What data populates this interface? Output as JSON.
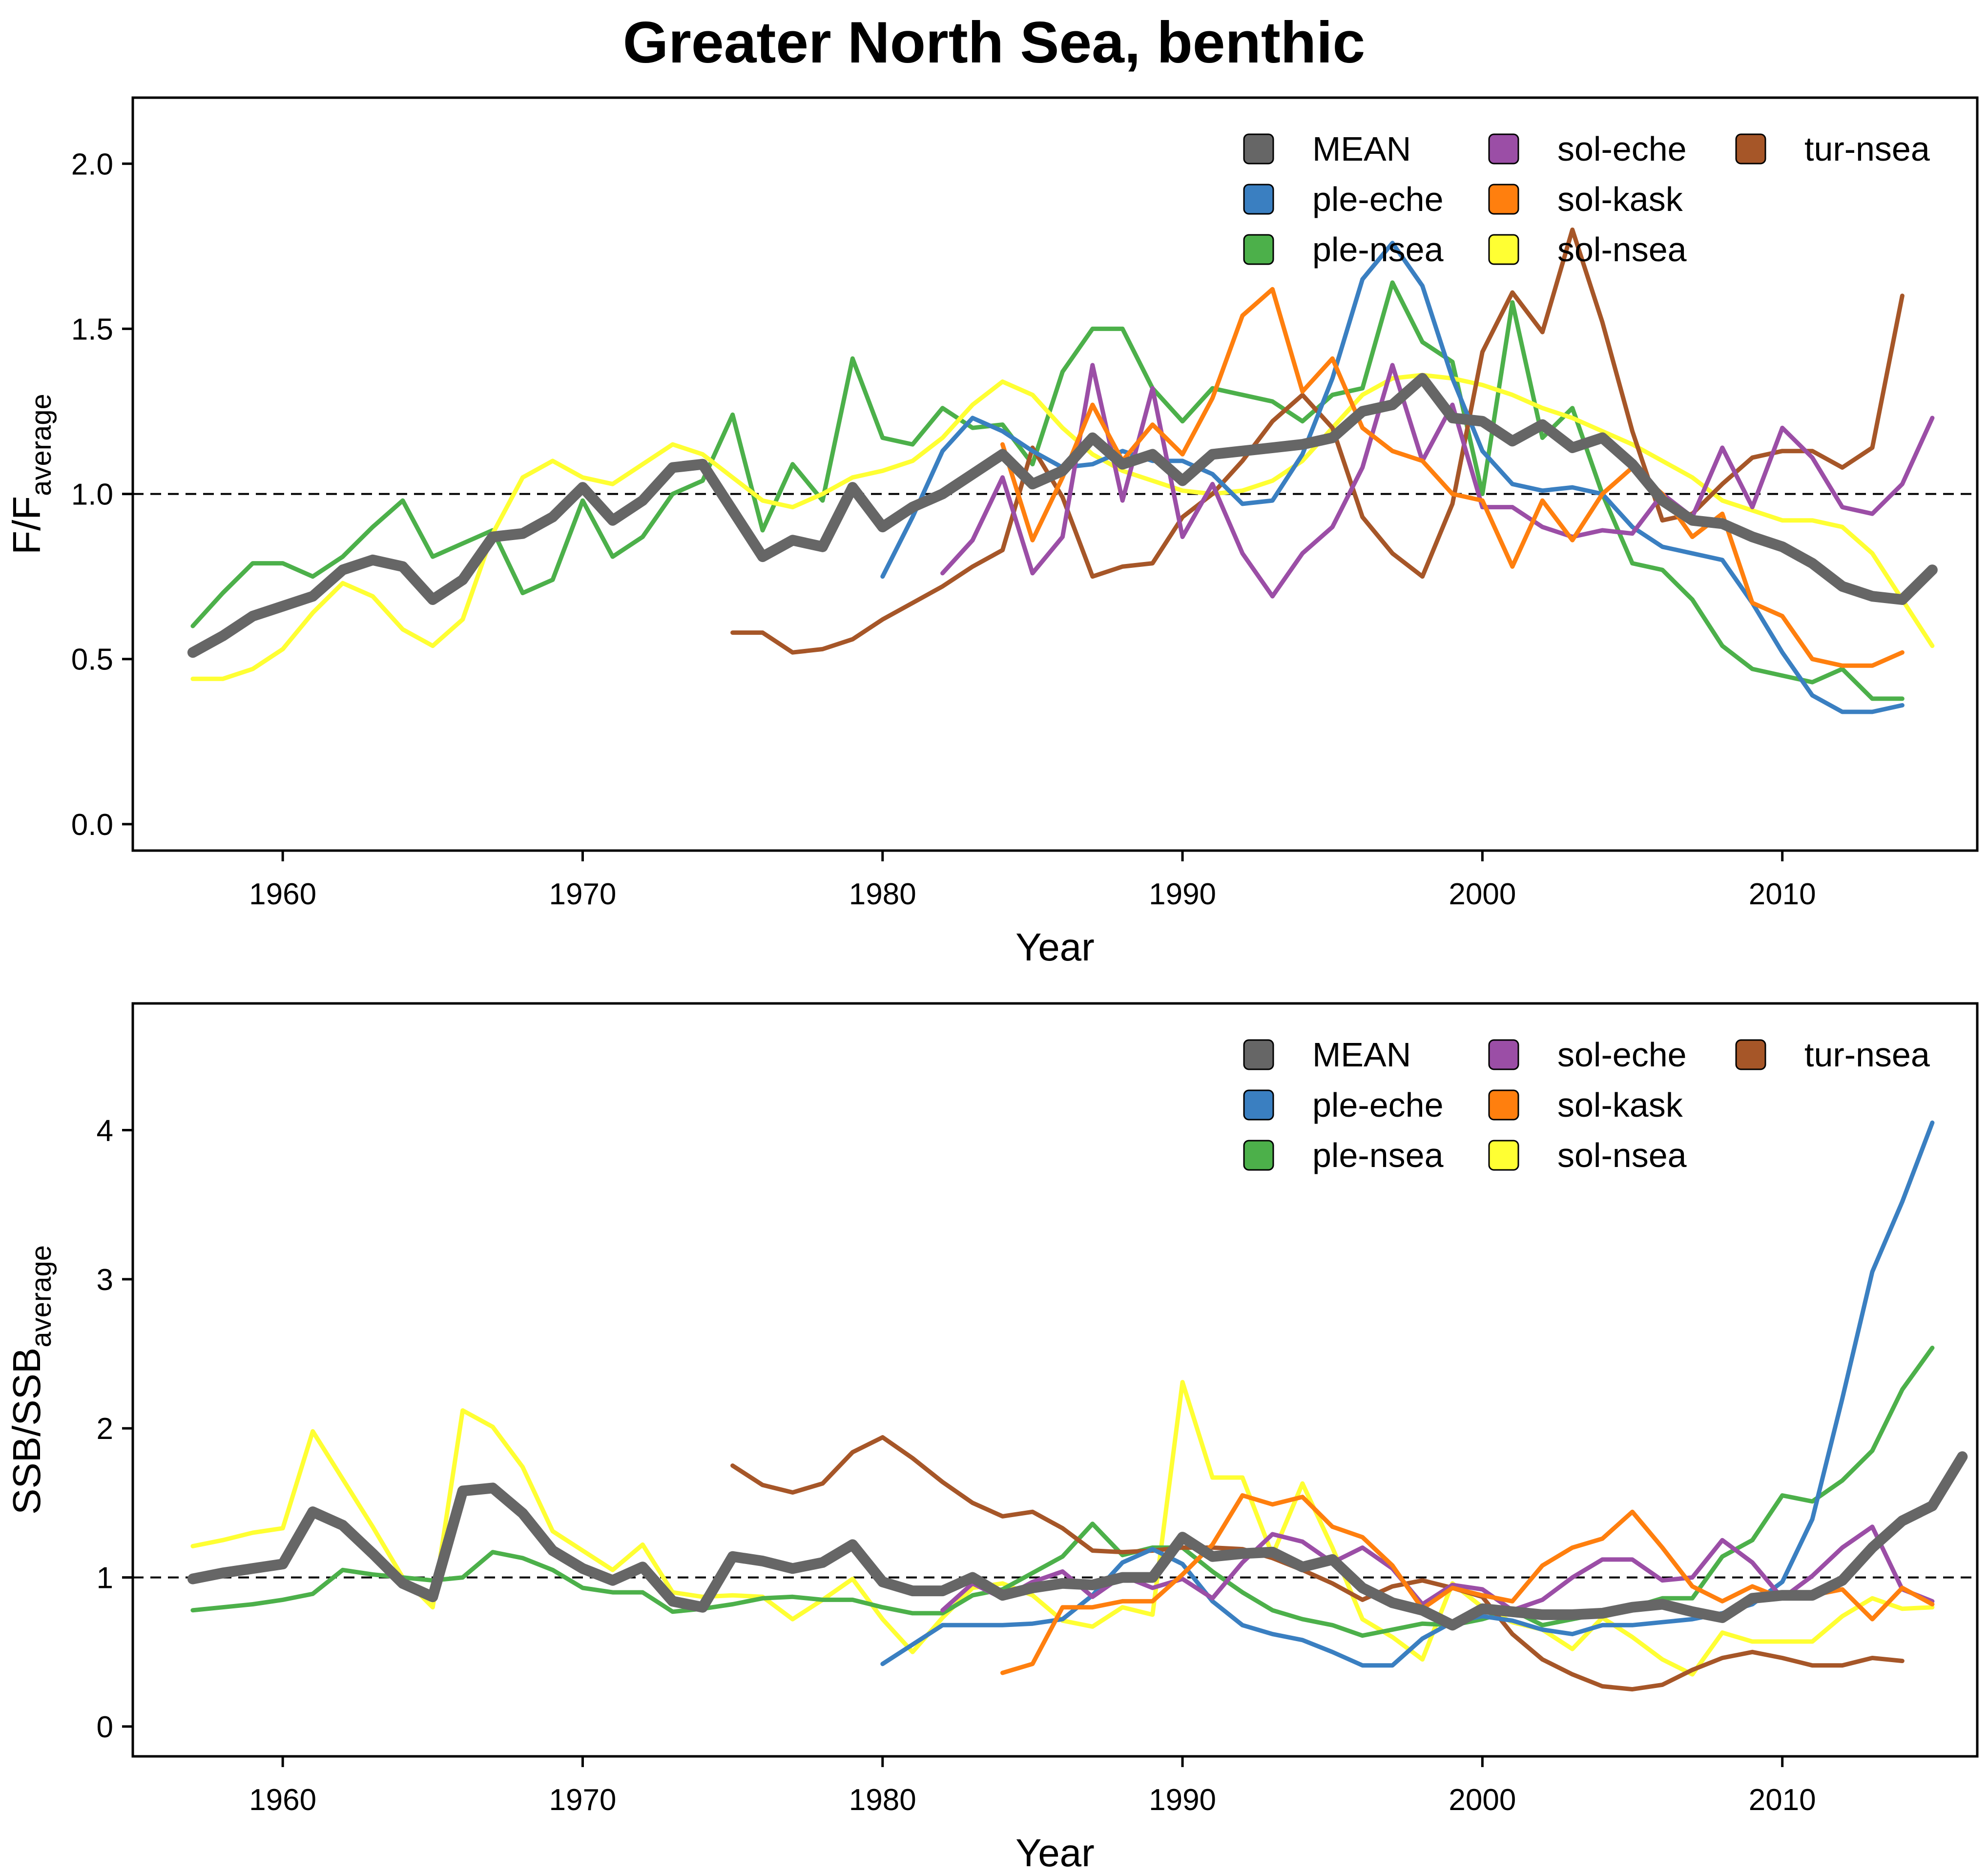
{
  "title": "Greater North Sea, benthic",
  "colors": {
    "MEAN": "#666666",
    "ple-eche": "#3a7fc1",
    "ple-nsea": "#4cb04a",
    "sol-eche": "#9b4ea6",
    "sol-kask": "#ff7f0e",
    "sol-nsea": "#ffff33",
    "tur-nsea": "#a65628"
  },
  "chart_data": [
    {
      "type": "line",
      "xlabel": "Year",
      "ylabel_main": "F/F",
      "ylabel_sub": "average",
      "xlim": [
        1955,
        2016.5
      ],
      "ylim": [
        -0.08,
        2.2
      ],
      "xticks": [
        1960,
        1970,
        1980,
        1990,
        2000,
        2010
      ],
      "yticks": [
        0.0,
        0.5,
        1.0,
        1.5,
        2.0
      ],
      "ytick_labels": [
        "0.0",
        "0.5",
        "1.0",
        "1.5",
        "2.0"
      ],
      "reference_line": 1.0,
      "legend_position": "top-right",
      "legend": [
        "MEAN",
        "ple-eche",
        "ple-nsea",
        "sol-eche",
        "sol-kask",
        "sol-nsea",
        "tur-nsea"
      ],
      "series": [
        {
          "name": "ple-nsea",
          "start": 1957,
          "values": [
            0.6,
            0.7,
            0.79,
            0.79,
            0.75,
            0.81,
            0.9,
            0.98,
            0.81,
            0.85,
            0.89,
            0.7,
            0.74,
            0.98,
            0.81,
            0.87,
            1.0,
            1.04,
            1.24,
            0.89,
            1.09,
            0.98,
            1.41,
            1.17,
            1.15,
            1.26,
            1.2,
            1.21,
            1.09,
            1.37,
            1.5,
            1.5,
            1.32,
            1.22,
            1.32,
            1.3,
            1.28,
            1.22,
            1.3,
            1.32,
            1.64,
            1.46,
            1.4,
            1.0,
            1.58,
            1.17,
            1.26,
            1.0,
            0.79,
            0.77,
            0.68,
            0.54,
            0.47,
            0.45,
            0.43,
            0.47,
            0.38,
            0.38
          ]
        },
        {
          "name": "sol-nsea",
          "start": 1957,
          "values": [
            0.44,
            0.44,
            0.47,
            0.53,
            0.64,
            0.73,
            0.69,
            0.59,
            0.54,
            0.62,
            0.88,
            1.05,
            1.1,
            1.05,
            1.03,
            1.09,
            1.15,
            1.12,
            1.05,
            0.98,
            0.96,
            1.0,
            1.05,
            1.07,
            1.1,
            1.17,
            1.27,
            1.34,
            1.3,
            1.2,
            1.12,
            1.07,
            1.04,
            1.01,
            1.0,
            1.01,
            1.04,
            1.1,
            1.2,
            1.3,
            1.35,
            1.36,
            1.35,
            1.33,
            1.3,
            1.26,
            1.23,
            1.19,
            1.15,
            1.1,
            1.05,
            0.98,
            0.95,
            0.92,
            0.92,
            0.9,
            0.82,
            0.68,
            0.54
          ]
        },
        {
          "name": "tur-nsea",
          "start": 1975,
          "values": [
            0.58,
            0.58,
            0.52,
            0.53,
            0.56,
            0.62,
            0.67,
            0.72,
            0.78,
            0.83,
            1.14,
            0.99,
            0.75,
            0.78,
            0.79,
            0.93,
            1.0,
            1.1,
            1.22,
            1.3,
            1.2,
            0.93,
            0.82,
            0.75,
            0.97,
            1.43,
            1.61,
            1.49,
            1.8,
            1.52,
            1.19,
            0.92,
            0.94,
            1.03,
            1.11,
            1.13,
            1.13,
            1.08,
            1.14,
            1.6
          ]
        },
        {
          "name": "ple-eche",
          "start": 1980,
          "values": [
            0.75,
            0.93,
            1.13,
            1.23,
            1.19,
            1.13,
            1.08,
            1.09,
            1.13,
            1.1,
            1.1,
            1.06,
            0.97,
            0.98,
            1.12,
            1.35,
            1.65,
            1.76,
            1.63,
            1.35,
            1.13,
            1.03,
            1.01,
            1.02,
            1.0,
            0.9,
            0.84,
            0.82,
            0.8,
            0.67,
            0.52,
            0.39,
            0.34,
            0.34,
            0.36
          ]
        },
        {
          "name": "sol-eche",
          "start": 1982,
          "values": [
            0.76,
            0.86,
            1.05,
            0.76,
            0.87,
            1.39,
            0.98,
            1.32,
            0.87,
            1.03,
            0.82,
            0.69,
            0.82,
            0.9,
            1.08,
            1.39,
            1.1,
            1.27,
            0.96,
            0.96,
            0.9,
            0.87,
            0.89,
            0.88,
            1.0,
            0.93,
            1.14,
            0.96,
            1.2,
            1.11,
            0.96,
            0.94,
            1.03,
            1.23
          ]
        },
        {
          "name": "sol-kask",
          "start": 1984,
          "values": [
            1.15,
            0.86,
            1.05,
            1.27,
            1.1,
            1.21,
            1.12,
            1.29,
            1.54,
            1.62,
            1.31,
            1.41,
            1.2,
            1.13,
            1.1,
            1.0,
            0.98,
            0.78,
            0.98,
            0.86,
            1.0,
            1.08,
            1.0,
            0.87,
            0.94,
            0.67,
            0.63,
            0.5,
            0.48,
            0.48,
            0.52
          ]
        },
        {
          "name": "MEAN",
          "start": 1957,
          "values": [
            0.52,
            0.57,
            0.63,
            0.66,
            0.69,
            0.77,
            0.8,
            0.78,
            0.68,
            0.74,
            0.87,
            0.88,
            0.93,
            1.02,
            0.92,
            0.98,
            1.08,
            1.09,
            0.95,
            0.81,
            0.86,
            0.84,
            1.02,
            0.9,
            0.96,
            1.0,
            1.06,
            1.12,
            1.03,
            1.07,
            1.17,
            1.09,
            1.12,
            1.04,
            1.12,
            1.13,
            1.14,
            1.15,
            1.17,
            1.25,
            1.27,
            1.35,
            1.23,
            1.22,
            1.16,
            1.21,
            1.14,
            1.17,
            1.09,
            0.98,
            0.92,
            0.91,
            0.87,
            0.84,
            0.79,
            0.72,
            0.69,
            0.68,
            0.77
          ]
        }
      ]
    },
    {
      "type": "line",
      "xlabel": "Year",
      "ylabel_main": "SSB/SSB",
      "ylabel_sub": "average",
      "xlim": [
        1955,
        2016.5
      ],
      "ylim": [
        -0.2,
        4.85
      ],
      "xticks": [
        1960,
        1970,
        1980,
        1990,
        2000,
        2010
      ],
      "yticks": [
        0,
        1,
        2,
        3,
        4
      ],
      "ytick_labels": [
        "0",
        "1",
        "2",
        "3",
        "4"
      ],
      "reference_line": 1.0,
      "legend_position": "top-right",
      "legend": [
        "MEAN",
        "ple-eche",
        "ple-nsea",
        "sol-eche",
        "sol-kask",
        "sol-nsea",
        "tur-nsea"
      ],
      "series": [
        {
          "name": "sol-nsea",
          "start": 1957,
          "values": [
            1.21,
            1.25,
            1.3,
            1.33,
            1.98,
            1.66,
            1.34,
            1.0,
            0.8,
            2.12,
            2.01,
            1.74,
            1.31,
            1.18,
            1.05,
            1.22,
            0.9,
            0.87,
            0.88,
            0.87,
            0.72,
            0.85,
            0.99,
            0.72,
            0.5,
            0.73,
            0.93,
            0.96,
            0.88,
            0.71,
            0.67,
            0.8,
            0.75,
            2.31,
            1.67,
            1.67,
            1.15,
            1.63,
            1.2,
            0.72,
            0.6,
            0.45,
            0.96,
            0.8,
            0.7,
            0.65,
            0.52,
            0.73,
            0.6,
            0.45,
            0.35,
            0.63,
            0.57,
            0.57,
            0.57,
            0.74,
            0.86,
            0.79,
            0.8
          ]
        },
        {
          "name": "ple-nsea",
          "start": 1957,
          "values": [
            0.78,
            0.8,
            0.82,
            0.85,
            0.89,
            1.05,
            1.02,
            1.0,
            0.98,
            1.0,
            1.17,
            1.13,
            1.05,
            0.93,
            0.9,
            0.9,
            0.77,
            0.79,
            0.82,
            0.86,
            0.87,
            0.85,
            0.85,
            0.8,
            0.76,
            0.76,
            0.88,
            0.92,
            1.03,
            1.14,
            1.36,
            1.15,
            1.2,
            1.2,
            1.04,
            0.9,
            0.78,
            0.72,
            0.68,
            0.61,
            0.65,
            0.69,
            0.68,
            0.72,
            0.78,
            0.68,
            0.72,
            0.76,
            0.8,
            0.86,
            0.86,
            1.14,
            1.25,
            1.55,
            1.51,
            1.65,
            1.85,
            2.26,
            2.54
          ]
        },
        {
          "name": "tur-nsea",
          "start": 1975,
          "values": [
            1.75,
            1.62,
            1.57,
            1.63,
            1.84,
            1.94,
            1.8,
            1.64,
            1.5,
            1.41,
            1.44,
            1.33,
            1.18,
            1.17,
            1.18,
            1.2,
            1.2,
            1.19,
            1.13,
            1.05,
            0.96,
            0.85,
            0.94,
            0.98,
            0.93,
            0.87,
            0.62,
            0.45,
            0.35,
            0.27,
            0.25,
            0.28,
            0.38,
            0.46,
            0.5,
            0.46,
            0.41,
            0.41,
            0.46,
            0.44
          ]
        },
        {
          "name": "ple-eche",
          "start": 1980,
          "values": [
            0.42,
            0.55,
            0.68,
            0.68,
            0.68,
            0.69,
            0.72,
            0.88,
            1.1,
            1.19,
            1.09,
            0.84,
            0.68,
            0.62,
            0.58,
            0.5,
            0.41,
            0.41,
            0.59,
            0.7,
            0.74,
            0.71,
            0.65,
            0.62,
            0.68,
            0.68,
            0.7,
            0.72,
            0.76,
            0.82,
            0.97,
            1.39,
            2.2,
            3.05,
            3.52,
            4.05
          ]
        },
        {
          "name": "sol-eche",
          "start": 1982,
          "values": [
            0.78,
            0.96,
            0.86,
            0.97,
            1.04,
            0.87,
            1.01,
            0.93,
            0.99,
            0.86,
            1.1,
            1.29,
            1.24,
            1.1,
            1.2,
            1.06,
            0.82,
            0.95,
            0.92,
            0.78,
            0.85,
            1.0,
            1.12,
            1.12,
            0.98,
            1.0,
            1.25,
            1.1,
            0.86,
            1.01,
            1.2,
            1.34,
            0.92,
            0.84
          ]
        },
        {
          "name": "sol-kask",
          "start": 1984,
          "values": [
            0.36,
            0.42,
            0.8,
            0.8,
            0.84,
            0.84,
            1.02,
            1.22,
            1.55,
            1.49,
            1.54,
            1.34,
            1.27,
            1.08,
            0.79,
            0.93,
            0.88,
            0.84,
            1.08,
            1.2,
            1.26,
            1.44,
            1.2,
            0.94,
            0.84,
            0.94,
            0.86,
            0.88,
            0.92,
            0.72,
            0.93,
            0.82
          ]
        },
        {
          "name": "MEAN",
          "start": 1957,
          "values": [
            0.99,
            1.03,
            1.06,
            1.09,
            1.44,
            1.35,
            1.16,
            0.96,
            0.87,
            1.58,
            1.6,
            1.43,
            1.18,
            1.06,
            0.98,
            1.07,
            0.84,
            0.8,
            1.14,
            1.11,
            1.06,
            1.1,
            1.22,
            0.97,
            0.91,
            0.91,
            1.0,
            0.88,
            0.93,
            0.96,
            0.95,
            1.0,
            1.0,
            1.27,
            1.14,
            1.16,
            1.17,
            1.07,
            1.12,
            0.93,
            0.83,
            0.78,
            0.68,
            0.79,
            0.77,
            0.75,
            0.75,
            0.76,
            0.8,
            0.82,
            0.77,
            0.73,
            0.86,
            0.88,
            0.88,
            0.98,
            1.2,
            1.38,
            1.48,
            1.81
          ]
        }
      ]
    }
  ]
}
